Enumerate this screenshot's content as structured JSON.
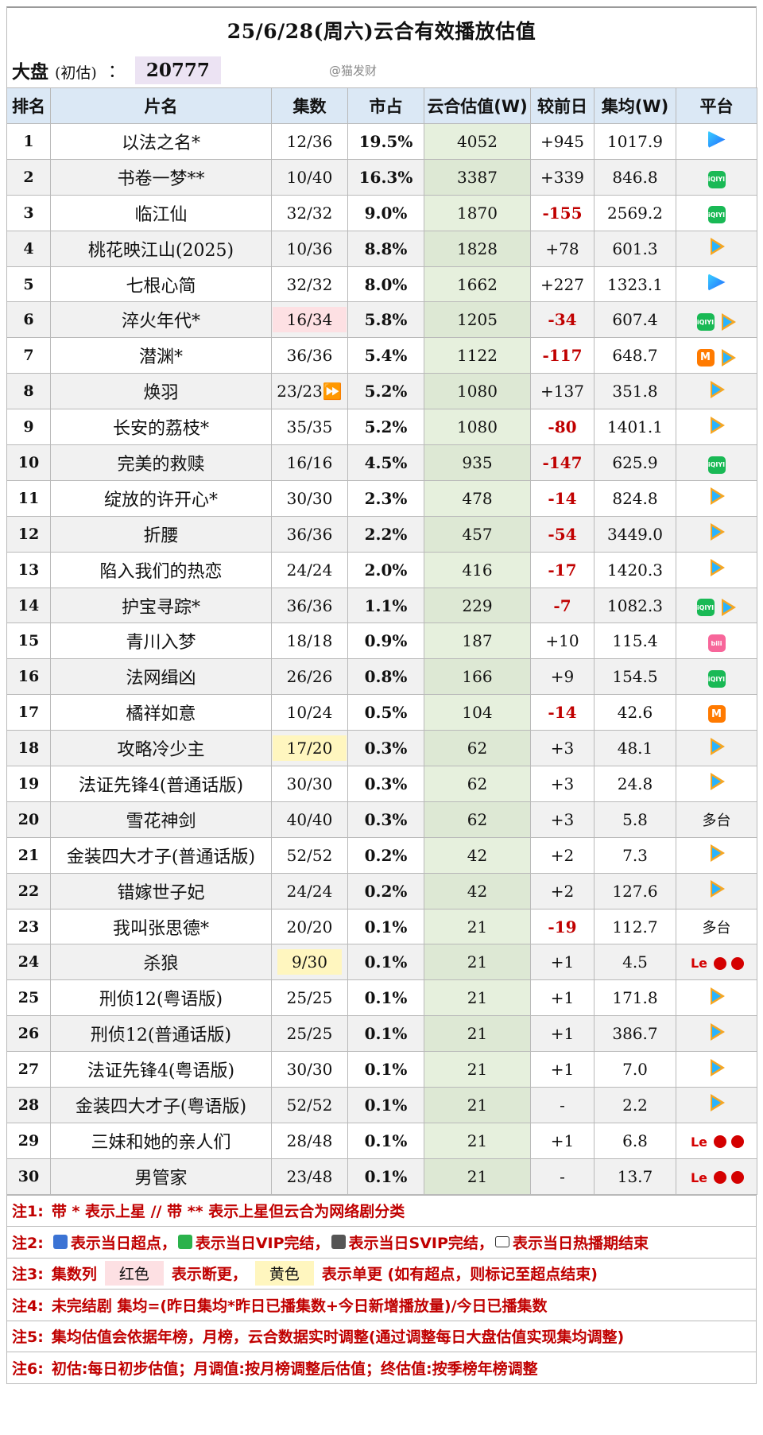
{
  "header": {
    "title": "25/6/28(周六)云合有效播放估值",
    "summary_label": "大盘",
    "summary_sub": "(初估)",
    "summary_colon": "：",
    "summary_value": "20777",
    "watermark": "@猫发财"
  },
  "columns": [
    "排名",
    "片名",
    "集数",
    "市占",
    "云合估值(W)",
    "较前日",
    "集均(W)",
    "平台"
  ],
  "rows": [
    {
      "rank": "1",
      "name": "以法之名*",
      "ep": "12/36",
      "share": "19.5%",
      "est": "4052",
      "chg": "+945",
      "avg": "1017.9",
      "platforms": [
        "youku"
      ]
    },
    {
      "rank": "2",
      "name": "书卷一梦**",
      "ep": "10/40",
      "share": "16.3%",
      "est": "3387",
      "chg": "+339",
      "avg": "846.8",
      "platforms": [
        "iqiyi"
      ]
    },
    {
      "rank": "3",
      "name": "临江仙",
      "ep": "32/32",
      "share": "9.0%",
      "est": "1870",
      "chg": "-155",
      "avg": "2569.2",
      "platforms": [
        "iqiyi"
      ]
    },
    {
      "rank": "4",
      "name": "桃花映江山(2025)",
      "ep": "10/36",
      "share": "8.8%",
      "est": "1828",
      "chg": "+78",
      "avg": "601.3",
      "platforms": [
        "tencent"
      ]
    },
    {
      "rank": "5",
      "name": "七根心简",
      "ep": "32/32",
      "share": "8.0%",
      "est": "1662",
      "chg": "+227",
      "avg": "1323.1",
      "platforms": [
        "youku"
      ]
    },
    {
      "rank": "6",
      "name": "淬火年代*",
      "ep": "16/34",
      "share": "5.8%",
      "est": "1205",
      "chg": "-34",
      "avg": "607.4",
      "platforms": [
        "iqiyi",
        "tencent"
      ],
      "ep_mark": "red"
    },
    {
      "rank": "7",
      "name": "潜渊*",
      "ep": "36/36",
      "share": "5.4%",
      "est": "1122",
      "chg": "-117",
      "avg": "648.7",
      "platforms": [
        "mango",
        "tencent"
      ]
    },
    {
      "rank": "8",
      "name": "焕羽",
      "ep": "23/23⏩",
      "share": "5.2%",
      "est": "1080",
      "chg": "+137",
      "avg": "351.8",
      "platforms": [
        "tencent"
      ]
    },
    {
      "rank": "9",
      "name": "长安的荔枝*",
      "ep": "35/35",
      "share": "5.2%",
      "est": "1080",
      "chg": "-80",
      "avg": "1401.1",
      "platforms": [
        "tencent"
      ]
    },
    {
      "rank": "10",
      "name": "完美的救赎",
      "ep": "16/16",
      "share": "4.5%",
      "est": "935",
      "chg": "-147",
      "avg": "625.9",
      "platforms": [
        "iqiyi"
      ]
    },
    {
      "rank": "11",
      "name": "绽放的许开心*",
      "ep": "30/30",
      "share": "2.3%",
      "est": "478",
      "chg": "-14",
      "avg": "824.8",
      "platforms": [
        "tencent"
      ]
    },
    {
      "rank": "12",
      "name": "折腰",
      "ep": "36/36",
      "share": "2.2%",
      "est": "457",
      "chg": "-54",
      "avg": "3449.0",
      "platforms": [
        "tencent"
      ]
    },
    {
      "rank": "13",
      "name": "陷入我们的热恋",
      "ep": "24/24",
      "share": "2.0%",
      "est": "416",
      "chg": "-17",
      "avg": "1420.3",
      "platforms": [
        "tencent"
      ]
    },
    {
      "rank": "14",
      "name": "护宝寻踪*",
      "ep": "36/36",
      "share": "1.1%",
      "est": "229",
      "chg": "-7",
      "avg": "1082.3",
      "platforms": [
        "iqiyi",
        "tencent"
      ]
    },
    {
      "rank": "15",
      "name": "青川入梦",
      "ep": "18/18",
      "share": "0.9%",
      "est": "187",
      "chg": "+10",
      "avg": "115.4",
      "platforms": [
        "bili"
      ]
    },
    {
      "rank": "16",
      "name": "法网缉凶",
      "ep": "26/26",
      "share": "0.8%",
      "est": "166",
      "chg": "+9",
      "avg": "154.5",
      "platforms": [
        "iqiyi"
      ]
    },
    {
      "rank": "17",
      "name": "橘祥如意",
      "ep": "10/24",
      "share": "0.5%",
      "est": "104",
      "chg": "-14",
      "avg": "42.6",
      "platforms": [
        "mango"
      ]
    },
    {
      "rank": "18",
      "name": "攻略冷少主",
      "ep": "17/20",
      "share": "0.3%",
      "est": "62",
      "chg": "+3",
      "avg": "48.1",
      "platforms": [
        "tencent"
      ],
      "ep_mark": "yellow"
    },
    {
      "rank": "19",
      "name": "法证先锋4(普通话版)",
      "ep": "30/30",
      "share": "0.3%",
      "est": "62",
      "chg": "+3",
      "avg": "24.8",
      "platforms": [
        "tencent"
      ]
    },
    {
      "rank": "20",
      "name": "雪花神剑",
      "ep": "40/40",
      "share": "0.3%",
      "est": "62",
      "chg": "+3",
      "avg": "5.8",
      "platforms": [],
      "platform_text": "多台"
    },
    {
      "rank": "21",
      "name": "金装四大才子(普通话版)",
      "ep": "52/52",
      "share": "0.2%",
      "est": "42",
      "chg": "+2",
      "avg": "7.3",
      "platforms": [
        "tencent"
      ]
    },
    {
      "rank": "22",
      "name": "错嫁世子妃",
      "ep": "24/24",
      "share": "0.2%",
      "est": "42",
      "chg": "+2",
      "avg": "127.6",
      "platforms": [
        "tencent"
      ]
    },
    {
      "rank": "23",
      "name": "我叫张思德*",
      "ep": "20/20",
      "share": "0.1%",
      "est": "21",
      "chg": "-19",
      "avg": "112.7",
      "platforms": [],
      "platform_text": "多台"
    },
    {
      "rank": "24",
      "name": "杀狼",
      "ep": "9/30",
      "share": "0.1%",
      "est": "21",
      "chg": "+1",
      "avg": "4.5",
      "platforms": [
        "le",
        "round",
        "round"
      ],
      "ep_mark": "yellow"
    },
    {
      "rank": "25",
      "name": "刑侦12(粤语版)",
      "ep": "25/25",
      "share": "0.1%",
      "est": "21",
      "chg": "+1",
      "avg": "171.8",
      "platforms": [
        "tencent"
      ]
    },
    {
      "rank": "26",
      "name": "刑侦12(普通话版)",
      "ep": "25/25",
      "share": "0.1%",
      "est": "21",
      "chg": "+1",
      "avg": "386.7",
      "platforms": [
        "tencent"
      ]
    },
    {
      "rank": "27",
      "name": "法证先锋4(粤语版)",
      "ep": "30/30",
      "share": "0.1%",
      "est": "21",
      "chg": "+1",
      "avg": "7.0",
      "platforms": [
        "tencent"
      ]
    },
    {
      "rank": "28",
      "name": "金装四大才子(粤语版)",
      "ep": "52/52",
      "share": "0.1%",
      "est": "21",
      "chg": "-",
      "avg": "2.2",
      "platforms": [
        "tencent"
      ]
    },
    {
      "rank": "29",
      "name": "三妹和她的亲人们",
      "ep": "28/48",
      "share": "0.1%",
      "est": "21",
      "chg": "+1",
      "avg": "6.8",
      "platforms": [
        "le",
        "round",
        "round"
      ]
    },
    {
      "rank": "30",
      "name": "男管家",
      "ep": "23/48",
      "share": "0.1%",
      "est": "21",
      "chg": "-",
      "avg": "13.7",
      "platforms": [
        "le",
        "round",
        "round"
      ]
    }
  ],
  "platform_labels": {
    "iqiyi": "iQIYI",
    "mango": "M",
    "bili": "bili",
    "le": "Le"
  },
  "notes": {
    "n1_key": "注1:",
    "n1": "带 * 表示上星 // 带 ** 表示上星但云合为网络剧分类",
    "n2_key": "注2:",
    "n2_a": "表示当日超点，",
    "n2_b": "表示当日VIP完结，",
    "n2_c": "表示当日SVIP完结，",
    "n2_d": "表示当日热播期结束",
    "n3_key": "注3:",
    "n3_a": "集数列",
    "n3_red": "红色",
    "n3_b": "表示断更，",
    "n3_yellow": "黄色",
    "n3_c": "表示单更 (如有超点，则标记至超点结束)",
    "n4_key": "注4:",
    "n4": "未完结剧 集均=(昨日集均*昨日已播集数+今日新增播放量)/今日已播集数",
    "n5_key": "注5:",
    "n5": "集均估值会依据年榜，月榜，云合数据实时调整(通过调整每日大盘估值实现集均调整)",
    "n6_key": "注6:",
    "n6": "初估:每日初步估值；月调值:按月榜调整后估值；终估值:按季榜年榜调整"
  },
  "colors": {
    "header_bg": "#dbe8f5",
    "est_bg": "#e6f0dd",
    "negative": "#c00000",
    "note_red": "#c00000"
  }
}
